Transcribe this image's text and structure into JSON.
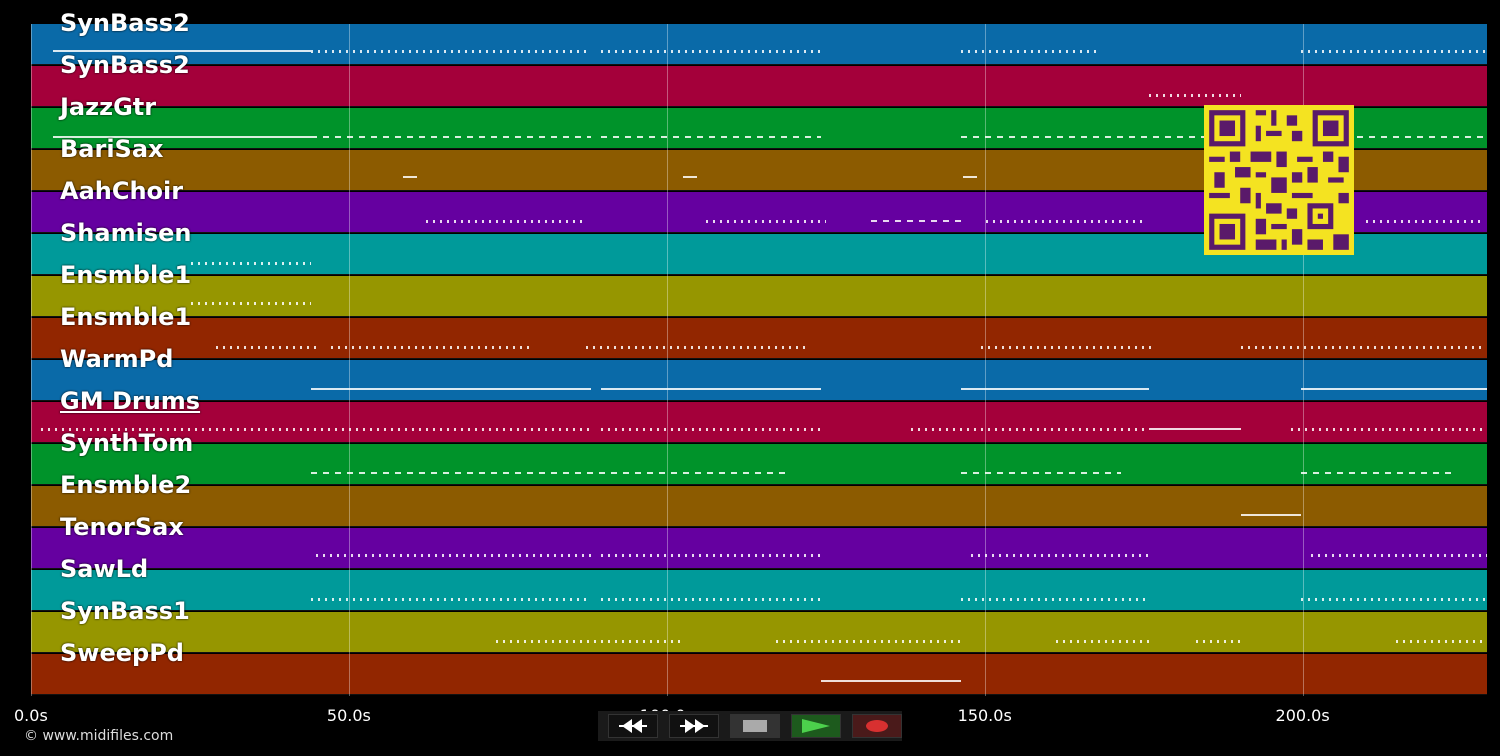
{
  "tracks": [
    {
      "name": "SynBass2",
      "color": "#0a6aa8"
    },
    {
      "name": "SynBass2",
      "color": "#a4003a"
    },
    {
      "name": "JazzGtr",
      "color": "#00932a"
    },
    {
      "name": "BariSax",
      "color": "#8c5b00"
    },
    {
      "name": "AahChoir",
      "color": "#6500a0"
    },
    {
      "name": "Shamisen",
      "color": "#009a9a"
    },
    {
      "name": "Ensmble1",
      "color": "#969600"
    },
    {
      "name": "Ensmble1",
      "color": "#922600"
    },
    {
      "name": "WarmPd",
      "color": "#0a6aa8"
    },
    {
      "name": "GM Drums",
      "color": "#a4003a"
    },
    {
      "name": "SynthTom",
      "color": "#00932a"
    },
    {
      "name": "Ensmble2",
      "color": "#8c5b00"
    },
    {
      "name": "TenorSax",
      "color": "#6500a0"
    },
    {
      "name": "SawLd",
      "color": "#009a9a"
    },
    {
      "name": "SynBass1",
      "color": "#969600"
    },
    {
      "name": "SweepPd",
      "color": "#922600"
    }
  ],
  "timeline": {
    "ticks": [
      "0.0s",
      "50.0s",
      "100.0s",
      "150.0s",
      "200.0s"
    ],
    "max_seconds": 229
  },
  "transport": {
    "rewind": "rewind-icon",
    "forward": "fast-forward-icon",
    "stop": "stop-icon",
    "play": "play-icon",
    "record": "record-icon"
  },
  "copyright": "© www.midifiles.com"
}
